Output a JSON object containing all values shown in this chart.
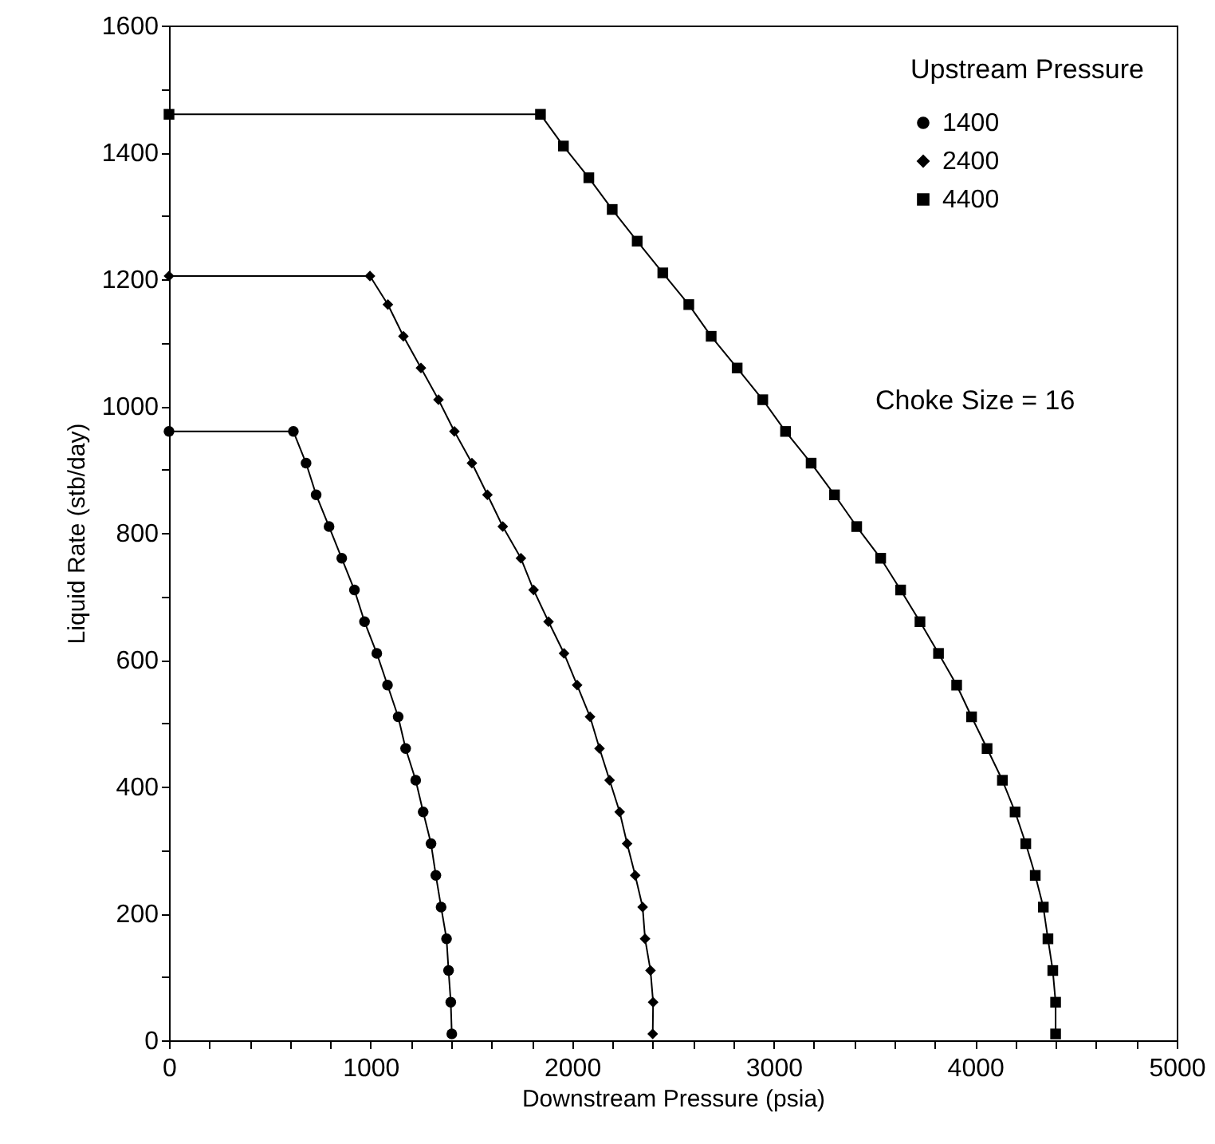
{
  "chart_data": {
    "type": "line",
    "xlabel": "Downstream Pressure (psia)",
    "ylabel": "Liquid Rate (stb/day)",
    "legend_title": "Upstream Pressure",
    "legend": "top right",
    "grid": false,
    "line_style": "solid",
    "annotations": [
      "Choke Size = 16"
    ],
    "xlim": [
      0,
      5000
    ],
    "ylim": [
      0,
      1600
    ],
    "xticks": [
      0,
      {
        "value": 200,
        "label": null
      },
      {
        "value": 400,
        "label": null
      },
      {
        "value": 600,
        "label": null
      },
      {
        "value": 800,
        "label": null
      },
      1000,
      {
        "value": 1200,
        "label": null
      },
      {
        "value": 1400,
        "label": null
      },
      {
        "value": 1600,
        "label": null
      },
      {
        "value": 1800,
        "label": null
      },
      2000,
      {
        "value": 2200,
        "label": null
      },
      {
        "value": 2400,
        "label": null
      },
      {
        "value": 2600,
        "label": null
      },
      {
        "value": 2800,
        "label": null
      },
      3000,
      {
        "value": 3200,
        "label": null
      },
      {
        "value": 3400,
        "label": null
      },
      {
        "value": 3600,
        "label": null
      },
      {
        "value": 3800,
        "label": null
      },
      4000,
      {
        "value": 4200,
        "label": null
      },
      {
        "value": 4400,
        "label": null
      },
      {
        "value": 4600,
        "label": null
      },
      {
        "value": 4800,
        "label": null
      },
      5000
    ],
    "yticks": [
      0,
      {
        "value": 100,
        "label": null
      },
      200,
      {
        "value": 300,
        "label": null
      },
      400,
      {
        "value": 500,
        "label": null
      },
      600,
      {
        "value": 700,
        "label": null
      },
      800,
      {
        "value": 900,
        "label": null
      },
      1000,
      {
        "value": 1100,
        "label": null
      },
      1200,
      {
        "value": 1300,
        "label": null
      },
      1400,
      {
        "value": 1500,
        "label": null
      },
      1600
    ],
    "series": [
      {
        "name": "1400",
        "color": "#000000",
        "marker": "circle",
        "x": [
          0,
          617,
          680,
          730,
          794,
          857,
          920,
          970,
          1031,
          1084,
          1137,
          1174,
          1224,
          1261,
          1300,
          1324,
          1350,
          1377,
          1387,
          1398,
          1403
        ],
        "values": [
          960,
          960,
          910,
          860,
          810,
          760,
          710,
          660,
          610,
          560,
          510,
          460,
          410,
          360,
          310,
          260,
          210,
          160,
          110,
          60,
          10
        ]
      },
      {
        "name": "2400",
        "color": "#000000",
        "marker": "diamond",
        "x": [
          0,
          997,
          1086,
          1163,
          1250,
          1337,
          1416,
          1503,
          1580,
          1656,
          1746,
          1809,
          1883,
          1960,
          2025,
          2089,
          2136,
          2186,
          2236,
          2273,
          2313,
          2350,
          2362,
          2389,
          2402,
          2400
        ],
        "values": [
          1205,
          1205,
          1160,
          1110,
          1060,
          1010,
          960,
          910,
          860,
          810,
          760,
          710,
          660,
          610,
          560,
          510,
          460,
          410,
          360,
          310,
          260,
          210,
          160,
          110,
          60,
          10
        ]
      },
      {
        "name": "4400",
        "color": "#000000",
        "marker": "square",
        "x": [
          0,
          1843,
          1957,
          2083,
          2199,
          2323,
          2450,
          2579,
          2690,
          2819,
          2946,
          3059,
          3186,
          3302,
          3412,
          3531,
          3630,
          3726,
          3818,
          3908,
          3982,
          4059,
          4135,
          4198,
          4251,
          4298,
          4338,
          4361,
          4385,
          4399,
          4399
        ],
        "values": [
          1460,
          1460,
          1410,
          1360,
          1310,
          1260,
          1210,
          1160,
          1110,
          1060,
          1010,
          960,
          910,
          860,
          810,
          760,
          710,
          660,
          610,
          560,
          510,
          460,
          410,
          360,
          310,
          260,
          210,
          160,
          110,
          60,
          10
        ]
      }
    ]
  }
}
